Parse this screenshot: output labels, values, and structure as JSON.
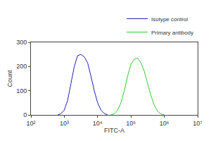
{
  "chart_data": {
    "type": "line",
    "x_label": "FITC-A",
    "y_label": "Count",
    "log": "x",
    "grid": false,
    "legend": "top right",
    "xlim": [
      100,
      10000000
    ],
    "xticks": [
      {
        "value": 100,
        "label": "10²"
      },
      {
        "value": 1000,
        "label": "10³"
      },
      {
        "value": 10000,
        "label": "10⁴"
      },
      {
        "value": 100000,
        "label": "10⁵"
      },
      {
        "value": 1000000,
        "label": "10⁶"
      },
      {
        "value": 10000000,
        "label": "10⁷"
      }
    ],
    "ylim": [
      0,
      300
    ],
    "yticks": [
      0,
      100,
      200,
      300
    ],
    "series": [
      {
        "name": "Isotype control",
        "color": "#1f1fb4",
        "x": [
          631,
          794,
          1000,
          1259,
          1585,
          1995,
          2512,
          3162,
          3981,
          5012,
          6310,
          7943,
          10000,
          12589,
          15849,
          19953
        ],
        "values": [
          0,
          5,
          20,
          60,
          130,
          200,
          245,
          250,
          240,
          215,
          160,
          100,
          50,
          20,
          6,
          0
        ]
      },
      {
        "name": "Primary antibody",
        "color": "#2ecc2e",
        "x": [
          25119,
          31623,
          39811,
          50119,
          63096,
          79433,
          100000,
          125893,
          158489,
          199526,
          251189,
          316228,
          398107,
          501187,
          630957,
          794328,
          1000000
        ],
        "values": [
          0,
          5,
          20,
          50,
          100,
          160,
          210,
          230,
          235,
          215,
          180,
          130,
          80,
          40,
          15,
          4,
          0
        ]
      }
    ]
  }
}
